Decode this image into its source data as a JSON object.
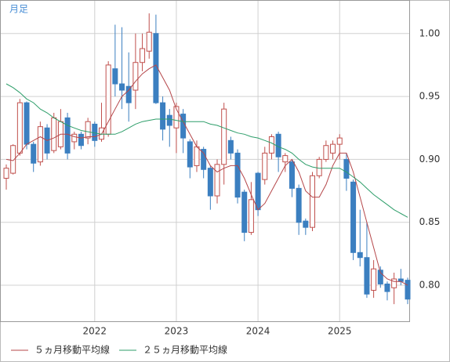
{
  "chart_data": {
    "type": "candlestick",
    "label": "月足",
    "categories": [
      null,
      null,
      null,
      null,
      null,
      null,
      null,
      null,
      null,
      null,
      null,
      null,
      null,
      "2022",
      null,
      null,
      null,
      null,
      null,
      null,
      null,
      null,
      null,
      null,
      null,
      "2023",
      null,
      null,
      null,
      null,
      null,
      null,
      null,
      null,
      null,
      null,
      null,
      "2024",
      null,
      null,
      null,
      null,
      null,
      null,
      null,
      null,
      null,
      null,
      null,
      "2025",
      null,
      null,
      null,
      null,
      null,
      null,
      null,
      null,
      null,
      null
    ],
    "open": [
      0.885,
      0.889,
      0.905,
      0.945,
      0.912,
      0.898,
      0.925,
      0.907,
      0.91,
      0.933,
      0.914,
      0.92,
      0.917,
      0.928,
      0.916,
      0.92,
      0.972,
      0.96,
      0.958,
      0.955,
      0.977,
      0.986,
      1.0,
      0.945,
      0.935,
      0.925,
      0.936,
      0.914,
      0.895,
      0.908,
      0.893,
      0.871,
      0.896,
      0.915,
      0.905,
      0.874,
      0.842,
      0.889,
      0.884,
      0.905,
      0.92,
      0.898,
      0.898,
      0.877,
      0.851,
      0.846,
      0.887,
      0.9,
      0.905,
      0.912,
      0.9,
      0.882,
      0.826,
      0.822,
      0.796,
      0.812,
      0.801,
      0.798,
      0.805,
      0.804
    ],
    "high": [
      0.896,
      0.912,
      0.948,
      0.946,
      0.914,
      0.93,
      0.928,
      0.937,
      0.94,
      0.937,
      0.922,
      0.922,
      0.933,
      0.93,
      0.945,
      0.978,
      1.007,
      1.005,
      0.985,
      1.0,
      1.0,
      1.016,
      1.015,
      0.95,
      0.94,
      0.945,
      0.94,
      0.916,
      0.915,
      0.91,
      0.895,
      0.9,
      0.945,
      0.918,
      0.908,
      0.876,
      0.882,
      0.89,
      0.91,
      0.92,
      0.922,
      0.905,
      0.9,
      0.88,
      0.853,
      0.89,
      0.902,
      0.915,
      0.915,
      0.92,
      0.905,
      0.884,
      0.86,
      0.85,
      0.82,
      0.815,
      0.803,
      0.81,
      0.813,
      0.806
    ],
    "low": [
      0.876,
      0.888,
      0.903,
      0.908,
      0.89,
      0.895,
      0.9,
      0.905,
      0.908,
      0.9,
      0.908,
      0.908,
      0.912,
      0.91,
      0.914,
      0.918,
      0.95,
      0.94,
      0.93,
      0.94,
      0.97,
      0.98,
      0.944,
      0.915,
      0.91,
      0.905,
      0.905,
      0.885,
      0.89,
      0.885,
      0.86,
      0.865,
      0.88,
      0.9,
      0.865,
      0.835,
      0.84,
      0.855,
      0.88,
      0.9,
      0.89,
      0.89,
      0.87,
      0.84,
      0.84,
      0.843,
      0.885,
      0.898,
      0.9,
      0.9,
      0.875,
      0.82,
      0.815,
      0.79,
      0.79,
      0.798,
      0.788,
      0.785,
      0.8,
      0.785
    ],
    "close": [
      0.893,
      0.911,
      0.945,
      0.912,
      0.897,
      0.926,
      0.905,
      0.933,
      0.93,
      0.905,
      0.92,
      0.911,
      0.93,
      0.915,
      0.925,
      0.975,
      0.96,
      0.955,
      0.945,
      0.977,
      0.988,
      1.001,
      0.945,
      0.924,
      0.927,
      0.942,
      0.917,
      0.894,
      0.91,
      0.892,
      0.871,
      0.896,
      0.94,
      0.905,
      0.87,
      0.842,
      0.868,
      0.86,
      0.905,
      0.918,
      0.902,
      0.903,
      0.877,
      0.85,
      0.846,
      0.887,
      0.9,
      0.911,
      0.912,
      0.917,
      0.885,
      0.826,
      0.822,
      0.793,
      0.813,
      0.801,
      0.795,
      0.805,
      0.803,
      0.789
    ],
    "up_color": "#c0504d",
    "down_color": "#3b7fc0",
    "series": [
      {
        "name": "５ヵ月移動平均線",
        "color": "#b5474a",
        "values": [
          0.9,
          0.899,
          0.905,
          0.912,
          0.915,
          0.918,
          0.915,
          0.917,
          0.92,
          0.92,
          0.918,
          0.917,
          0.918,
          0.918,
          0.92,
          0.93,
          0.94,
          0.95,
          0.955,
          0.962,
          0.968,
          0.972,
          0.975,
          0.965,
          0.955,
          0.94,
          0.93,
          0.92,
          0.91,
          0.905,
          0.895,
          0.89,
          0.893,
          0.895,
          0.895,
          0.885,
          0.872,
          0.86,
          0.865,
          0.875,
          0.885,
          0.895,
          0.9,
          0.89,
          0.875,
          0.87,
          0.87,
          0.88,
          0.895,
          0.905,
          0.905,
          0.89,
          0.87,
          0.85,
          0.83,
          0.81,
          0.805,
          0.803,
          0.803,
          0.8
        ]
      },
      {
        "name": "２５ヵ月移動平均線",
        "color": "#2e9e6a",
        "values": [
          0.96,
          0.957,
          0.953,
          0.948,
          0.945,
          0.94,
          0.937,
          0.933,
          0.93,
          0.927,
          0.925,
          0.923,
          0.922,
          0.921,
          0.92,
          0.92,
          0.92,
          0.922,
          0.925,
          0.928,
          0.93,
          0.931,
          0.932,
          0.932,
          0.932,
          0.931,
          0.93,
          0.93,
          0.93,
          0.93,
          0.928,
          0.927,
          0.925,
          0.923,
          0.921,
          0.92,
          0.918,
          0.917,
          0.915,
          0.913,
          0.91,
          0.908,
          0.905,
          0.9,
          0.896,
          0.894,
          0.893,
          0.893,
          0.893,
          0.893,
          0.89,
          0.886,
          0.882,
          0.877,
          0.872,
          0.868,
          0.864,
          0.86,
          0.857,
          0.854
        ]
      }
    ],
    "ylim": [
      0.7714,
      1.026
    ],
    "yticks": [
      {
        "value": 0.8,
        "label": "0.80"
      },
      {
        "value": 0.85,
        "label": "0.85"
      },
      {
        "value": 0.9,
        "label": "0.90"
      },
      {
        "value": 0.95,
        "label": "0.95"
      },
      {
        "value": 1.0,
        "label": "1.00"
      }
    ],
    "grid": true
  }
}
